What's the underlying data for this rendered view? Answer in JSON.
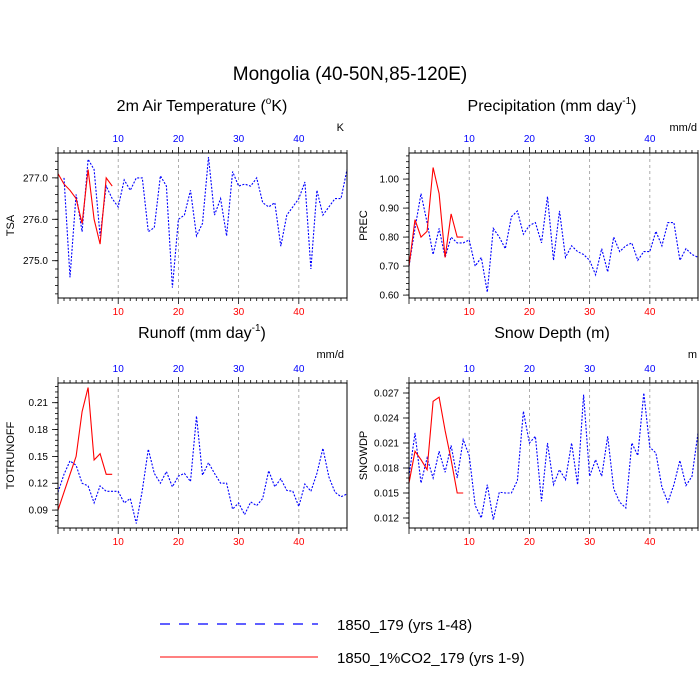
{
  "figure_title": "Mongolia (40-50N,85-120E)",
  "legend": [
    {
      "label": "1850_179 (yrs 1-48)",
      "color": "#0000ff",
      "style": "dashed"
    },
    {
      "label": "1850_1%CO2_179 (yrs 1-9)",
      "color": "#ff0000",
      "style": "solid"
    }
  ],
  "colors": {
    "control": "#0000ff",
    "co2": "#ff0000",
    "gridline": "#999999"
  },
  "chart_data": [
    {
      "type": "line",
      "title": "2m Air Temperature (",
      "title_sup": "o",
      "title_tail": "K)",
      "unit": "K",
      "ylabel": "TSA",
      "xlim": [
        0,
        48
      ],
      "ylim": [
        274.1,
        277.6
      ],
      "yticks": [
        "275.0",
        "276.0",
        "277.0"
      ],
      "xticks": [
        "10",
        "20",
        "30",
        "40"
      ],
      "grid_x": true,
      "series": [
        {
          "name": "1850_179 (yrs 1-48)",
          "x": [
            1,
            2,
            3,
            4,
            5,
            6,
            7,
            8,
            9,
            10,
            11,
            12,
            13,
            14,
            15,
            16,
            17,
            18,
            19,
            20,
            21,
            22,
            23,
            24,
            25,
            26,
            27,
            28,
            29,
            30,
            31,
            32,
            33,
            34,
            35,
            36,
            37,
            38,
            39,
            40,
            41,
            42,
            43,
            44,
            45,
            46,
            47,
            48
          ],
          "values": [
            277.0,
            274.6,
            276.6,
            275.7,
            277.45,
            277.2,
            275.6,
            276.8,
            276.5,
            276.3,
            276.95,
            276.7,
            277.0,
            277.0,
            275.7,
            275.8,
            277.05,
            276.8,
            274.35,
            276.0,
            276.1,
            276.7,
            275.6,
            275.9,
            277.5,
            276.1,
            276.5,
            275.6,
            277.15,
            276.8,
            276.85,
            276.8,
            277.0,
            276.4,
            276.3,
            276.4,
            275.35,
            276.1,
            276.3,
            276.5,
            276.9,
            274.8,
            276.7,
            276.1,
            276.3,
            276.5,
            276.5,
            277.2
          ]
        },
        {
          "name": "1850_1%CO2_179 (yrs 1-9)",
          "x": [
            0,
            1,
            2,
            3,
            4,
            5,
            6,
            7,
            8,
            9
          ],
          "values": [
            277.1,
            276.85,
            276.7,
            276.5,
            275.9,
            277.2,
            276.0,
            275.4,
            277.0,
            276.8
          ]
        }
      ]
    },
    {
      "type": "line",
      "title": "Precipitation (mm day",
      "title_sup": "-1",
      "title_tail": ")",
      "unit": "mm/d",
      "ylabel": "PREC",
      "xlim": [
        0,
        48
      ],
      "ylim": [
        0.59,
        1.09
      ],
      "yticks": [
        "0.60",
        "0.70",
        "0.80",
        "0.90",
        "1.00"
      ],
      "xticks": [
        "10",
        "20",
        "30",
        "40"
      ],
      "grid_x": true,
      "series": [
        {
          "name": "1850_179 (yrs 1-48)",
          "x": [
            0,
            1,
            2,
            3,
            4,
            5,
            6,
            7,
            8,
            9,
            10,
            11,
            12,
            13,
            14,
            15,
            16,
            17,
            18,
            19,
            20,
            21,
            22,
            23,
            24,
            25,
            26,
            27,
            28,
            29,
            30,
            31,
            32,
            33,
            34,
            35,
            36,
            37,
            38,
            39,
            40,
            41,
            42,
            43,
            44,
            45,
            46,
            47,
            48
          ],
          "values": [
            0.7,
            0.83,
            0.95,
            0.85,
            0.74,
            0.83,
            0.73,
            0.8,
            0.78,
            0.78,
            0.79,
            0.7,
            0.73,
            0.61,
            0.83,
            0.8,
            0.76,
            0.87,
            0.89,
            0.81,
            0.84,
            0.85,
            0.78,
            0.94,
            0.72,
            0.89,
            0.73,
            0.77,
            0.75,
            0.74,
            0.72,
            0.67,
            0.76,
            0.68,
            0.8,
            0.75,
            0.77,
            0.78,
            0.72,
            0.75,
            0.75,
            0.82,
            0.77,
            0.85,
            0.85,
            0.72,
            0.76,
            0.74,
            0.73
          ]
        },
        {
          "name": "1850_1%CO2_179 (yrs 1-9)",
          "x": [
            0,
            1,
            2,
            3,
            4,
            5,
            6,
            7,
            8,
            9
          ],
          "values": [
            0.7,
            0.86,
            0.8,
            0.82,
            1.04,
            0.95,
            0.73,
            0.88,
            0.8,
            0.8
          ]
        }
      ]
    },
    {
      "type": "line",
      "title": "Runoff (mm day",
      "title_sup": "-1",
      "title_tail": ")",
      "unit": "mm/d",
      "ylabel": "TOTRUNOFF",
      "xlim": [
        0,
        48
      ],
      "ylim": [
        0.07,
        0.232
      ],
      "yticks": [
        "0.09",
        "0.12",
        "0.15",
        "0.18",
        "0.21"
      ],
      "xticks": [
        "10",
        "20",
        "30",
        "40"
      ],
      "grid_x": true,
      "series": [
        {
          "name": "1850_179 (yrs 1-48)",
          "x": [
            0,
            1,
            2,
            3,
            4,
            5,
            6,
            7,
            8,
            9,
            10,
            11,
            12,
            13,
            14,
            15,
            16,
            17,
            18,
            19,
            20,
            21,
            22,
            23,
            24,
            25,
            26,
            27,
            28,
            29,
            30,
            31,
            32,
            33,
            34,
            35,
            36,
            37,
            38,
            39,
            40,
            41,
            42,
            43,
            44,
            45,
            46,
            47,
            48
          ],
          "values": [
            0.11,
            0.13,
            0.145,
            0.14,
            0.12,
            0.117,
            0.098,
            0.117,
            0.111,
            0.111,
            0.111,
            0.098,
            0.103,
            0.075,
            0.112,
            0.158,
            0.131,
            0.12,
            0.133,
            0.116,
            0.128,
            0.131,
            0.122,
            0.195,
            0.129,
            0.143,
            0.131,
            0.12,
            0.12,
            0.091,
            0.098,
            0.085,
            0.099,
            0.095,
            0.103,
            0.134,
            0.116,
            0.125,
            0.112,
            0.111,
            0.094,
            0.119,
            0.111,
            0.131,
            0.159,
            0.127,
            0.11,
            0.105,
            0.108
          ]
        },
        {
          "name": "1850_1%CO2_179 (yrs 1-9)",
          "x": [
            0,
            1,
            2,
            3,
            4,
            5,
            6,
            7,
            8,
            9
          ],
          "values": [
            0.09,
            0.11,
            0.13,
            0.15,
            0.2,
            0.227,
            0.146,
            0.153,
            0.13,
            0.13
          ]
        }
      ]
    },
    {
      "type": "line",
      "title": "Snow Depth (m)",
      "title_sup": "",
      "title_tail": "",
      "unit": "m",
      "ylabel": "SNOWDP",
      "xlim": [
        0,
        48
      ],
      "ylim": [
        0.0108,
        0.0282
      ],
      "yticks": [
        "0.012",
        "0.015",
        "0.018",
        "0.021",
        "0.024",
        "0.027"
      ],
      "xticks": [
        "10",
        "20",
        "30",
        "40"
      ],
      "grid_x": true,
      "series": [
        {
          "name": "1850_179 (yrs 1-48)",
          "x": [
            0,
            1,
            2,
            3,
            4,
            5,
            6,
            7,
            8,
            9,
            10,
            11,
            12,
            13,
            14,
            15,
            16,
            17,
            18,
            19,
            20,
            21,
            22,
            23,
            24,
            25,
            26,
            27,
            28,
            29,
            30,
            31,
            32,
            33,
            34,
            35,
            36,
            37,
            38,
            39,
            40,
            41,
            42,
            43,
            44,
            45,
            46,
            47,
            48
          ],
          "values": [
            0.017,
            0.0222,
            0.0162,
            0.0192,
            0.0168,
            0.02,
            0.0175,
            0.0207,
            0.0168,
            0.0214,
            0.0195,
            0.0135,
            0.012,
            0.016,
            0.0118,
            0.0151,
            0.015,
            0.015,
            0.0165,
            0.0248,
            0.021,
            0.0218,
            0.014,
            0.021,
            0.016,
            0.0178,
            0.0166,
            0.021,
            0.016,
            0.0268,
            0.017,
            0.019,
            0.017,
            0.0218,
            0.0155,
            0.0139,
            0.0132,
            0.021,
            0.0195,
            0.027,
            0.0205,
            0.0198,
            0.0157,
            0.0139,
            0.016,
            0.0189,
            0.0159,
            0.017,
            0.0222
          ]
        },
        {
          "name": "1850_1%CO2_179 (yrs 1-9)",
          "x": [
            0,
            1,
            2,
            3,
            4,
            5,
            6,
            7,
            8,
            9
          ],
          "values": [
            0.0162,
            0.02,
            0.019,
            0.0178,
            0.026,
            0.0265,
            0.0225,
            0.019,
            0.015,
            0.015
          ]
        }
      ]
    }
  ]
}
